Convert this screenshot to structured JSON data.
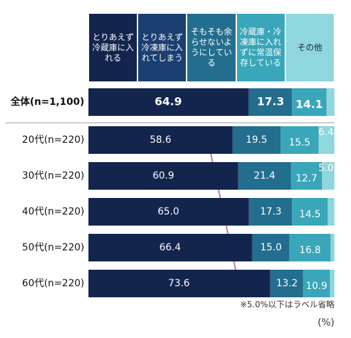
{
  "chart_data": {
    "type": "stacked-bar",
    "orientation": "horizontal",
    "categories": [
      "全体(n=1,100)",
      "20代(n=220)",
      "30代(n=220)",
      "40代(n=220)",
      "50代(n=220)",
      "60代(n=220)"
    ],
    "series": [
      {
        "name": "とりあえず冷蔵庫に入れる",
        "color": "#13244d",
        "values": [
          64.9,
          58.6,
          60.9,
          65.0,
          66.4,
          73.6
        ],
        "value_labels": [
          "64.9",
          "58.6",
          "60.9",
          "65.0",
          "66.4",
          "73.6"
        ]
      },
      {
        "name": "とりあえず冷凍庫に入れてしまう",
        "color": "#1b3f70",
        "values": [
          0.5,
          0,
          0,
          0.5,
          0.3,
          0.5
        ],
        "value_labels": [
          null,
          null,
          null,
          null,
          null,
          null
        ]
      },
      {
        "name": "そもそも余らせないようにしている",
        "color": "#236d8f",
        "values": [
          17.3,
          19.5,
          21.4,
          17.3,
          15.0,
          13.2
        ],
        "value_labels": [
          "17.3",
          "19.5",
          "21.4",
          "17.3",
          "15.0",
          "13.2"
        ]
      },
      {
        "name": "冷蔵庫・冷凍庫に入れずに常温保存している",
        "color": "#3aa6b9",
        "values": [
          14.1,
          15.5,
          12.7,
          14.5,
          16.8,
          10.9
        ],
        "value_labels": [
          "14.1",
          "15.5",
          "12.7",
          "14.5",
          "16.8",
          "10.9"
        ]
      },
      {
        "name": "その他",
        "color": "#8fd6dd",
        "values": [
          3.2,
          6.4,
          5.0,
          2.7,
          1.5,
          1.8
        ],
        "value_labels": [
          null,
          "6.4",
          "5.0",
          null,
          null,
          null
        ]
      }
    ],
    "xlim": [
      0,
      100
    ],
    "note": "※5.0%以下はラベル省略",
    "unit": "(%)"
  }
}
